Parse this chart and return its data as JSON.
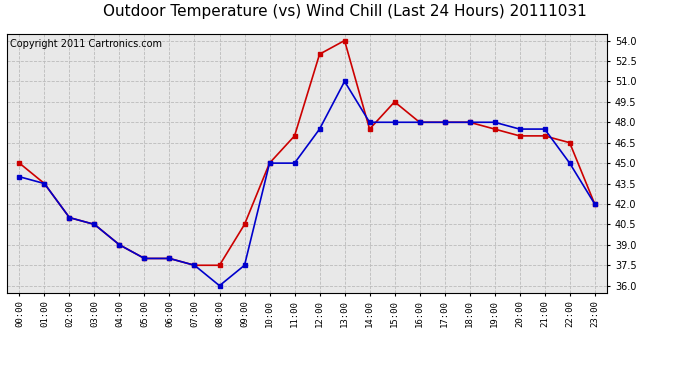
{
  "title": "Outdoor Temperature (vs) Wind Chill (Last 24 Hours) 20111031",
  "copyright_text": "Copyright 2011 Cartronics.com",
  "x_labels": [
    "00:00",
    "01:00",
    "02:00",
    "03:00",
    "04:00",
    "05:00",
    "06:00",
    "07:00",
    "08:00",
    "09:00",
    "10:00",
    "11:00",
    "12:00",
    "13:00",
    "14:00",
    "15:00",
    "16:00",
    "17:00",
    "18:00",
    "19:00",
    "20:00",
    "21:00",
    "22:00",
    "23:00"
  ],
  "outdoor_temp": [
    45.0,
    43.5,
    41.0,
    40.5,
    39.0,
    38.0,
    38.0,
    37.5,
    37.5,
    40.5,
    45.0,
    47.0,
    53.0,
    54.0,
    47.5,
    49.5,
    48.0,
    48.0,
    48.0,
    47.5,
    47.0,
    47.0,
    46.5,
    42.0
  ],
  "wind_chill": [
    44.0,
    43.5,
    41.0,
    40.5,
    39.0,
    38.0,
    38.0,
    37.5,
    36.0,
    37.5,
    45.0,
    45.0,
    47.5,
    51.0,
    48.0,
    48.0,
    48.0,
    48.0,
    48.0,
    48.0,
    47.5,
    47.5,
    45.0,
    42.0
  ],
  "temp_color": "#cc0000",
  "chill_color": "#0000cc",
  "ylim": [
    35.5,
    54.5
  ],
  "yticks": [
    36.0,
    37.5,
    39.0,
    40.5,
    42.0,
    43.5,
    45.0,
    46.5,
    48.0,
    49.5,
    51.0,
    52.5,
    54.0
  ],
  "bg_color": "#ffffff",
  "plot_bg_color": "#e8e8e8",
  "grid_color": "#bbbbbb",
  "title_fontsize": 11,
  "copyright_fontsize": 7,
  "marker": "s",
  "marker_size": 3,
  "line_width": 1.2
}
